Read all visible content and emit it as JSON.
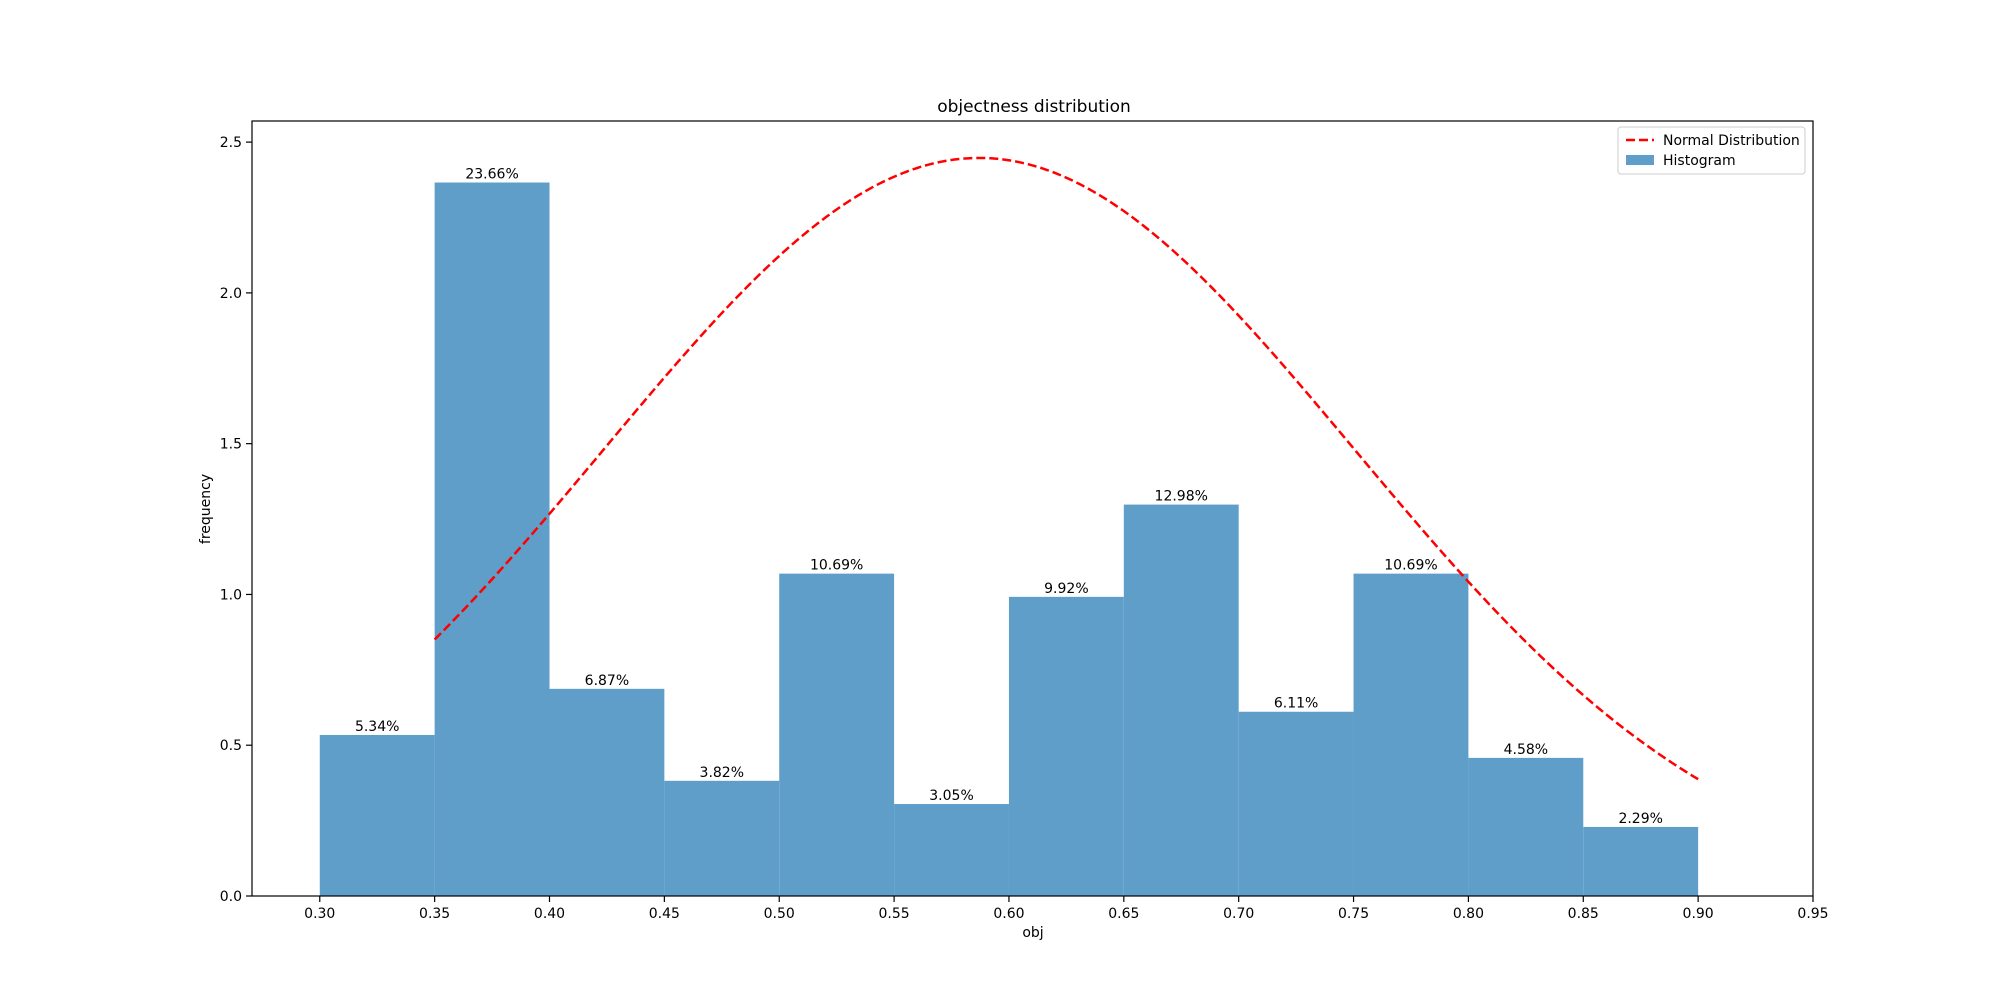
{
  "chart_data": {
    "type": "bar",
    "title": "objectness distribution",
    "xlabel": "obj",
    "ylabel": "frequency",
    "xlim": [
      0.2705,
      0.95
    ],
    "ylim": [
      0,
      2.57
    ],
    "x_ticks": [
      "0.30",
      "0.35",
      "0.40",
      "0.45",
      "0.50",
      "0.55",
      "0.60",
      "0.65",
      "0.70",
      "0.75",
      "0.80",
      "0.85",
      "0.90",
      "0.95"
    ],
    "y_ticks": [
      "0.0",
      "0.5",
      "1.0",
      "1.5",
      "2.0",
      "2.5"
    ],
    "bins": [
      0.3,
      0.35,
      0.4,
      0.45,
      0.5,
      0.55,
      0.6,
      0.65,
      0.7,
      0.75,
      0.8,
      0.85,
      0.9
    ],
    "series": [
      {
        "name": "Histogram",
        "type": "histogram",
        "color": "#5f9ec9",
        "values": [
          0.534,
          2.366,
          0.687,
          0.382,
          1.069,
          0.305,
          0.992,
          1.298,
          0.611,
          1.069,
          0.458,
          0.229
        ],
        "labels": [
          "5.34%",
          "23.66%",
          "6.87%",
          "3.82%",
          "10.69%",
          "3.05%",
          "9.92%",
          "12.98%",
          "6.11%",
          "10.69%",
          "4.58%",
          "2.29%"
        ]
      },
      {
        "name": "Normal Distribution",
        "type": "line",
        "style": "dashed",
        "color": "#ff0000",
        "mean": 0.587,
        "std": 0.163,
        "x_range": [
          0.35,
          0.9
        ]
      }
    ],
    "legend": {
      "position": "top-right",
      "entries": [
        "Normal Distribution",
        "Histogram"
      ]
    },
    "grid": false
  }
}
